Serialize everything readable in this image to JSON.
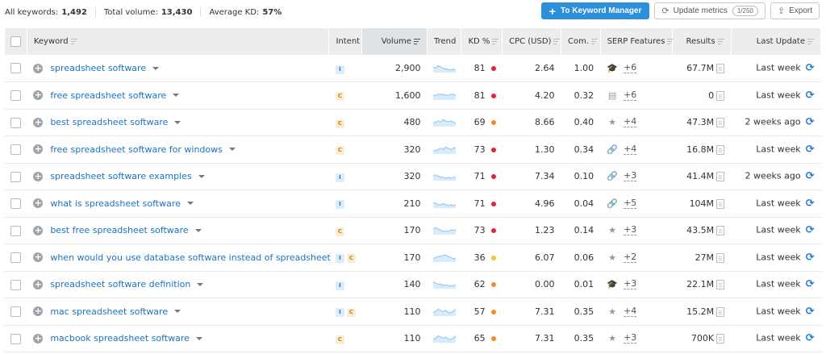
{
  "summary": {
    "all_keywords_label": "All keywords:",
    "all_keywords_value": "1,492",
    "total_volume_label": "Total volume:",
    "total_volume_value": "13,430",
    "average_kd_label": "Average KD:",
    "average_kd_value": "57%"
  },
  "toolbar": {
    "keyword_manager_label": "To Keyword Manager",
    "update_metrics_label": "Update metrics",
    "update_metrics_count": "1/250",
    "export_label": "Export"
  },
  "columns": {
    "keyword": "Keyword",
    "intent": "Intent",
    "volume": "Volume",
    "trend": "Trend",
    "kd": "KD %",
    "cpc": "CPC (USD)",
    "com": "Com.",
    "serp": "SERP Features",
    "results": "Results",
    "last_update": "Last Update"
  },
  "colors": {
    "accent": "#2b8fd9",
    "link": "#1a73c4",
    "kd_red": "#e8222b",
    "kd_orange": "#f58c22",
    "kd_yellow": "#f9c32b"
  },
  "rows": [
    {
      "keyword": "spreadsheet software",
      "intent": [
        "I"
      ],
      "volume": "2,900",
      "trend": [
        5,
        4,
        6,
        5,
        4,
        3,
        3,
        2,
        3,
        2
      ],
      "kd": "81",
      "kd_color": "#e8222b",
      "cpc": "2.64",
      "com": "1.00",
      "serp_icon": "graduation-cap-icon",
      "serp_glyph": "🎓",
      "serp_more": "+6",
      "results": "67.7M",
      "last_update": "Last week"
    },
    {
      "keyword": "free spreadsheet software",
      "intent": [
        "C"
      ],
      "volume": "1,600",
      "trend": [
        4,
        4,
        5,
        5,
        5,
        4,
        4,
        5,
        5,
        4
      ],
      "kd": "81",
      "kd_color": "#e8222b",
      "cpc": "4.20",
      "com": "0.32",
      "serp_icon": "news-icon",
      "serp_glyph": "▤",
      "serp_more": "+6",
      "results": "0",
      "last_update": "Last week"
    },
    {
      "keyword": "best spreadsheet software",
      "intent": [
        "C"
      ],
      "volume": "480",
      "trend": [
        3,
        4,
        5,
        4,
        6,
        5,
        4,
        5,
        4,
        3
      ],
      "kd": "69",
      "kd_color": "#f58c22",
      "cpc": "8.66",
      "com": "0.40",
      "serp_icon": "star-icon",
      "serp_glyph": "★",
      "serp_more": "+4",
      "results": "47.3M",
      "last_update": "2 weeks ago"
    },
    {
      "keyword": "free spreadsheet software for windows",
      "intent": [
        "C"
      ],
      "volume": "320",
      "trend": [
        3,
        3,
        4,
        5,
        4,
        6,
        5,
        4,
        5,
        6
      ],
      "kd": "73",
      "kd_color": "#e8222b",
      "cpc": "1.30",
      "com": "0.34",
      "serp_icon": "link-icon",
      "serp_glyph": "🔗",
      "serp_more": "+4",
      "results": "16.8M",
      "last_update": "Last week"
    },
    {
      "keyword": "spreadsheet software examples",
      "intent": [
        "I"
      ],
      "volume": "320",
      "trend": [
        4,
        5,
        4,
        3,
        3,
        2,
        3,
        2,
        3,
        3
      ],
      "kd": "71",
      "kd_color": "#e8222b",
      "cpc": "7.34",
      "com": "0.10",
      "serp_icon": "link-icon",
      "serp_glyph": "🔗",
      "serp_more": "+3",
      "results": "41.4M",
      "last_update": "2 weeks ago"
    },
    {
      "keyword": "what is spreadsheet software",
      "intent": [
        "I"
      ],
      "volume": "210",
      "trend": [
        5,
        4,
        3,
        3,
        4,
        3,
        2,
        3,
        2,
        3
      ],
      "kd": "71",
      "kd_color": "#e8222b",
      "cpc": "4.96",
      "com": "0.04",
      "serp_icon": "link-icon",
      "serp_glyph": "🔗",
      "serp_more": "+5",
      "results": "104M",
      "last_update": "Last week"
    },
    {
      "keyword": "best free spreadsheet software",
      "intent": [
        "C"
      ],
      "volume": "170",
      "trend": [
        5,
        6,
        5,
        4,
        3,
        3,
        3,
        4,
        4,
        4
      ],
      "kd": "73",
      "kd_color": "#e8222b",
      "cpc": "1.23",
      "com": "0.14",
      "serp_icon": "star-icon",
      "serp_glyph": "★",
      "serp_more": "+3",
      "results": "43.5M",
      "last_update": "Last week"
    },
    {
      "keyword": "when would you use database software instead of spreadsheet",
      "intent": [
        "I",
        "C"
      ],
      "volume": "170",
      "trend": [
        3,
        4,
        5,
        5,
        6,
        6,
        5,
        4,
        3,
        3
      ],
      "kd": "36",
      "kd_color": "#f9c32b",
      "cpc": "6.07",
      "com": "0.06",
      "serp_icon": "star-icon",
      "serp_glyph": "★",
      "serp_more": "+2",
      "results": "27M",
      "last_update": "Last week"
    },
    {
      "keyword": "spreadsheet software definition",
      "intent": [
        "I"
      ],
      "volume": "140",
      "trend": [
        6,
        5,
        4,
        4,
        3,
        3,
        3,
        2,
        3,
        3
      ],
      "kd": "62",
      "kd_color": "#f58c22",
      "cpc": "0.00",
      "com": "0.01",
      "serp_icon": "graduation-cap-icon",
      "serp_glyph": "🎓",
      "serp_more": "+3",
      "results": "22.1M",
      "last_update": "Last week"
    },
    {
      "keyword": "mac spreadsheet software",
      "intent": [
        "I",
        "C"
      ],
      "volume": "110",
      "trend": [
        3,
        4,
        6,
        5,
        4,
        5,
        3,
        3,
        4,
        6
      ],
      "kd": "57",
      "kd_color": "#f58c22",
      "cpc": "7.31",
      "com": "0.35",
      "serp_icon": "star-icon",
      "serp_glyph": "★",
      "serp_more": "+4",
      "results": "15.2M",
      "last_update": "Last week"
    },
    {
      "keyword": "macbook spreadsheet software",
      "intent": [
        "C"
      ],
      "volume": "110",
      "trend": [
        3,
        4,
        6,
        5,
        4,
        5,
        3,
        3,
        4,
        6
      ],
      "kd": "65",
      "kd_color": "#f58c22",
      "cpc": "7.31",
      "com": "0.35",
      "serp_icon": "star-icon",
      "serp_glyph": "★",
      "serp_more": "+3",
      "results": "700K",
      "last_update": "Last week"
    }
  ]
}
